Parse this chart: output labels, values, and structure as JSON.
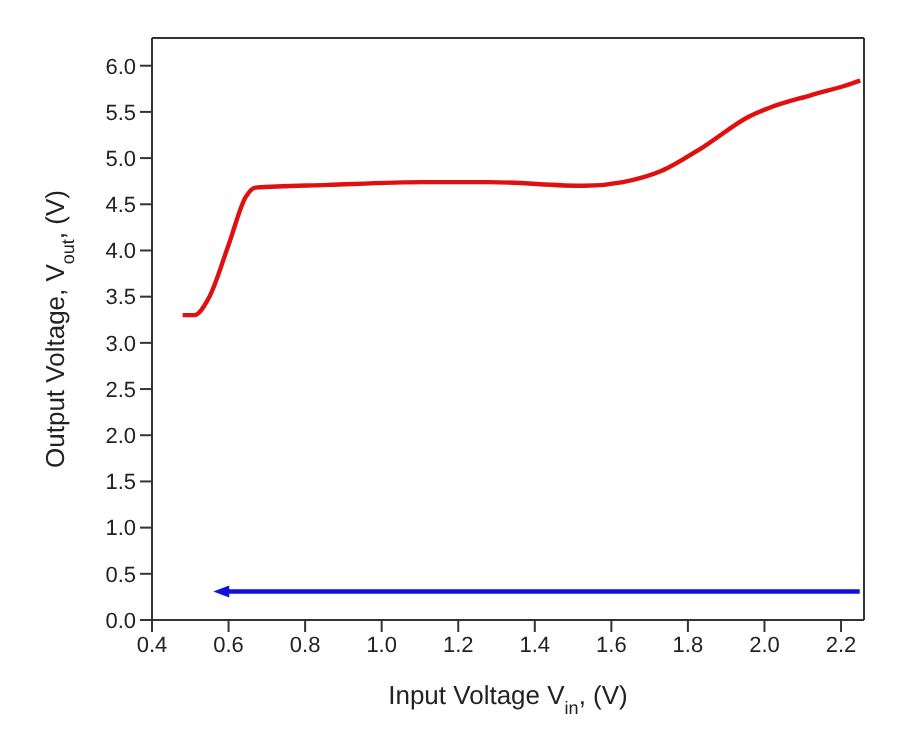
{
  "chart_data": {
    "type": "line",
    "xlabel": "Input  Voltage V$_{in}$, (V)",
    "ylabel": "Output Voltage, V$_{out}$, (V)",
    "xlim": [
      0.4,
      2.26
    ],
    "xticks": [
      0.4,
      0.6,
      0.8,
      {
        "value": 1,
        "label": "1.0"
      },
      1.2,
      1.4,
      1.6,
      1.8,
      {
        "value": 2,
        "label": "2.0"
      },
      2.2
    ],
    "ylim": [
      0,
      6.3
    ],
    "yticks": [
      {
        "value": 0,
        "label": "0.0"
      },
      0.5,
      {
        "value": 1,
        "label": "1.0"
      },
      1.5,
      {
        "value": 2,
        "label": "2.0"
      },
      2.5,
      {
        "value": 3,
        "label": "3.0"
      },
      3.5,
      {
        "value": 4,
        "label": "4.0"
      },
      4.5,
      {
        "value": 5,
        "label": "5.0"
      },
      5.5,
      {
        "value": 6,
        "label": "6.0"
      }
    ],
    "marker": "none",
    "line_style": "solid",
    "series": [
      {
        "color": "#e01010",
        "x": [
          0.48,
          0.51,
          0.55,
          0.6,
          0.645,
          0.67,
          0.86,
          1.11,
          1.28,
          1.53,
          1.63,
          1.73,
          1.84,
          1.96,
          2.01,
          2.12,
          2.23,
          2.25
        ],
        "values": [
          3.3,
          3.3,
          3.5,
          4.06,
          4.58,
          4.68,
          4.71,
          4.74,
          4.74,
          4.7,
          4.74,
          4.86,
          5.12,
          5.45,
          5.54,
          5.68,
          5.81,
          5.84
        ]
      }
    ]
  }
}
